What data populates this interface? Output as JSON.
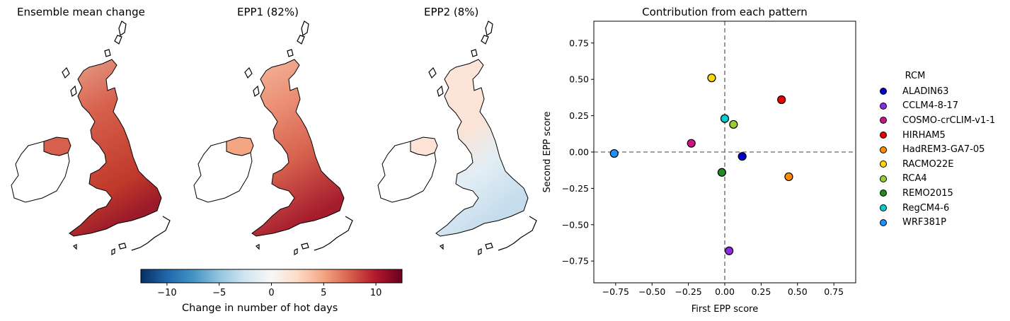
{
  "maps": {
    "panels": [
      {
        "title": "Ensemble mean change"
      },
      {
        "title": "EPP1 (82%)"
      },
      {
        "title": "EPP2 (8%)"
      }
    ],
    "colorbar": {
      "label": "Change in number of hot days",
      "ticks": [
        "−10",
        "−5",
        "0",
        "5",
        "10"
      ],
      "tick_values": [
        -10,
        -5,
        0,
        5,
        10
      ],
      "range": [
        -12.5,
        12.5
      ],
      "colormap": "RdBu_r"
    }
  },
  "chart_data": {
    "type": "scatter",
    "title": "Contribution from each pattern",
    "xlabel": "First EPP score",
    "ylabel": "Second EPP score",
    "xlim": [
      -0.9,
      0.9
    ],
    "ylim": [
      -0.9,
      0.9
    ],
    "xticks": [
      "−0.75",
      "−0.50",
      "−0.25",
      "0.00",
      "0.25",
      "0.50",
      "0.75"
    ],
    "xtick_values": [
      -0.75,
      -0.5,
      -0.25,
      0.0,
      0.25,
      0.5,
      0.75
    ],
    "yticks": [
      "0.75",
      "0.50",
      "0.25",
      "0.00",
      "−0.25",
      "−0.50",
      "−0.75"
    ],
    "ytick_values": [
      0.75,
      0.5,
      0.25,
      0.0,
      -0.25,
      -0.5,
      -0.75
    ],
    "reference_lines": {
      "x": 0,
      "y": 0,
      "style": "dashed",
      "color": "#808080"
    },
    "legend_title": "RCM",
    "legend_position": "right",
    "points": [
      {
        "name": "ALADIN63",
        "x": 0.12,
        "y": -0.03,
        "color": "#0000cd"
      },
      {
        "name": "CCLM4-8-17",
        "x": 0.03,
        "y": -0.68,
        "color": "#8a2be2"
      },
      {
        "name": "COSMO-crCLIM-v1-1",
        "x": -0.23,
        "y": 0.06,
        "color": "#c71585"
      },
      {
        "name": "HIRHAM5",
        "x": 0.39,
        "y": 0.36,
        "color": "#ee0000"
      },
      {
        "name": "HadREM3-GA7-05",
        "x": 0.44,
        "y": -0.17,
        "color": "#ff8c00"
      },
      {
        "name": "RACMO22E",
        "x": -0.09,
        "y": 0.51,
        "color": "#ffd700"
      },
      {
        "name": "RCA4",
        "x": 0.06,
        "y": 0.19,
        "color": "#9acd32"
      },
      {
        "name": "REMO2015",
        "x": -0.02,
        "y": -0.14,
        "color": "#228b22"
      },
      {
        "name": "RegCM4-6",
        "x": 0.0,
        "y": 0.23,
        "color": "#00ced1"
      },
      {
        "name": "WRF381P",
        "x": -0.76,
        "y": -0.01,
        "color": "#1e90ff"
      }
    ]
  }
}
